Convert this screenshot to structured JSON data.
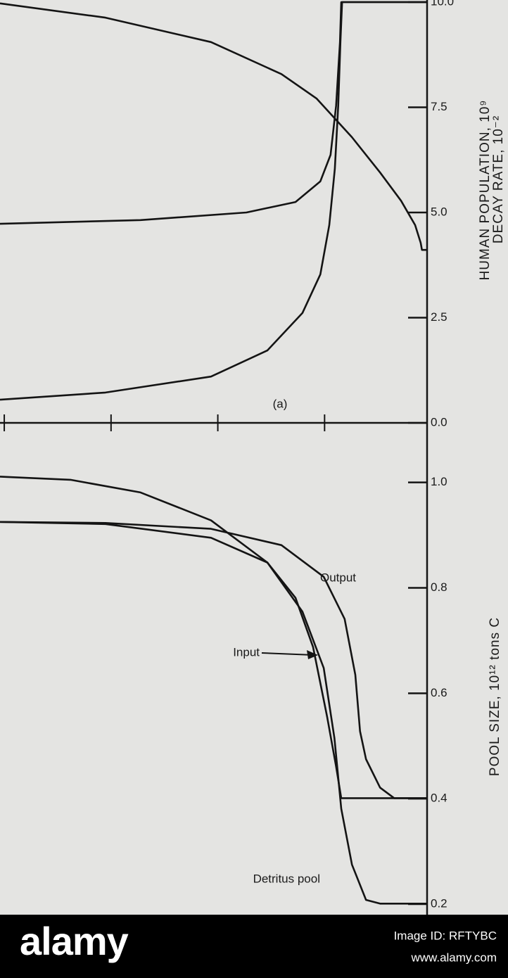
{
  "chart_data": [
    {
      "type": "line",
      "annotation": "(a)",
      "y_label": "HUMAN POPULATION, 10⁹",
      "y_label2": "DECAY RATE, 10⁻²",
      "xlim": [
        0,
        100
      ],
      "xticks": [
        1,
        26,
        51,
        76
      ],
      "ylim": [
        0,
        10
      ],
      "yticks": [
        {
          "value": 0,
          "label": "0.0"
        },
        2.5,
        {
          "value": 5,
          "label": "5.0"
        },
        7.5,
        {
          "value": 10,
          "label": "10.0"
        }
      ],
      "color": "#141414",
      "series": [
        {
          "x": [
            0,
            24.7,
            49.4,
            65.9,
            74.1,
            82.4,
            89,
            93.9,
            97.2,
            98.5,
            98.8,
            100
          ],
          "values": [
            9.97,
            9.63,
            9.05,
            8.29,
            7.71,
            6.79,
            5.95,
            5.28,
            4.7,
            4.28,
            4.11,
            4.11
          ]
        },
        {
          "x": [
            0,
            32.9,
            57.7,
            69.2,
            75,
            77.4,
            78.7,
            79.6,
            79.9,
            100
          ],
          "values": [
            4.73,
            4.82,
            5.0,
            5.25,
            5.74,
            6.37,
            7.54,
            9.05,
            10,
            10
          ]
        },
        {
          "x": [
            0,
            24.7,
            49.4,
            62.6,
            70.8,
            75,
            77.1,
            78.4,
            79.2,
            79.7,
            80.1,
            100
          ],
          "values": [
            0.55,
            0.72,
            1.1,
            1.72,
            2.61,
            3.53,
            4.7,
            6.04,
            7.54,
            9.05,
            10,
            10
          ]
        }
      ]
    },
    {
      "type": "line",
      "y_label": "POOL SIZE, 10¹² tons C",
      "xlim": [
        0,
        100
      ],
      "ylim": [
        0.18,
        1.113
      ],
      "yticks": [
        0.2,
        0.4,
        0.6,
        0.8,
        {
          "value": 1,
          "label": "1.0"
        }
      ],
      "color": "#141414",
      "series": [
        {
          "name": "Output",
          "x": [
            0,
            24.7,
            49.4,
            65.9,
            75.8,
            80.7,
            83.2,
            84.3,
            85.7,
            89,
            92.3,
            100
          ],
          "values": [
            0.925,
            0.923,
            0.912,
            0.881,
            0.821,
            0.741,
            0.635,
            0.528,
            0.475,
            0.421,
            0.401,
            0.401
          ]
        },
        {
          "name": "Input",
          "x": [
            0,
            24.7,
            49.4,
            62.6,
            69.2,
            73.3,
            76.6,
            78.7,
            79.9,
            100
          ],
          "values": [
            0.925,
            0.921,
            0.895,
            0.848,
            0.781,
            0.688,
            0.555,
            0.461,
            0.401,
            0.401
          ]
        },
        {
          "name": "Detritus pool",
          "x": [
            0,
            16.5,
            32.9,
            49.4,
            62.6,
            70.8,
            75.8,
            78.3,
            79.9,
            82.4,
            85.7,
            89,
            100
          ],
          "values": [
            1.011,
            1.005,
            0.981,
            0.928,
            0.848,
            0.755,
            0.648,
            0.515,
            0.381,
            0.275,
            0.208,
            0.201,
            0.201
          ]
        }
      ]
    }
  ],
  "watermark": {
    "logo": "alamy",
    "image_id": "Image ID: RFTYBC",
    "url": "www.alamy.com"
  }
}
